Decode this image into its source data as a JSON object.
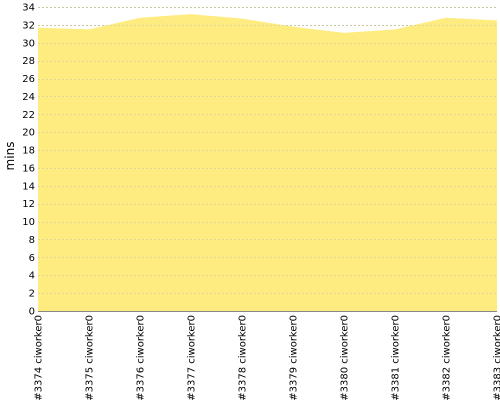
{
  "colors": {
    "area_fill": "#ffec80",
    "axis_line": "#888888",
    "grid_light": "#d8d2a0",
    "grid_dark": "#888888"
  },
  "chart_data": {
    "type": "area",
    "title": "",
    "xlabel": "",
    "ylabel": "mins",
    "ylim": [
      0,
      34
    ],
    "yticks": [
      0,
      2,
      4,
      6,
      8,
      10,
      12,
      14,
      16,
      18,
      20,
      22,
      24,
      26,
      28,
      30,
      32,
      34
    ],
    "grid": true,
    "legend": "none",
    "categories": [
      "#3374 ciworker0",
      "#3375 ciworker0",
      "#3376 ciworker0",
      "#3377 ciworker0",
      "#3378 ciworker0",
      "#3379 ciworker0",
      "#3380 ciworker0",
      "#3381 ciworker0",
      "#3382 ciworker0",
      "#3383 ciworker0"
    ],
    "series": [
      {
        "values": [
          31.7,
          31.5,
          32.8,
          33.2,
          32.7,
          31.8,
          31.1,
          31.5,
          32.8,
          32.5
        ]
      }
    ]
  }
}
